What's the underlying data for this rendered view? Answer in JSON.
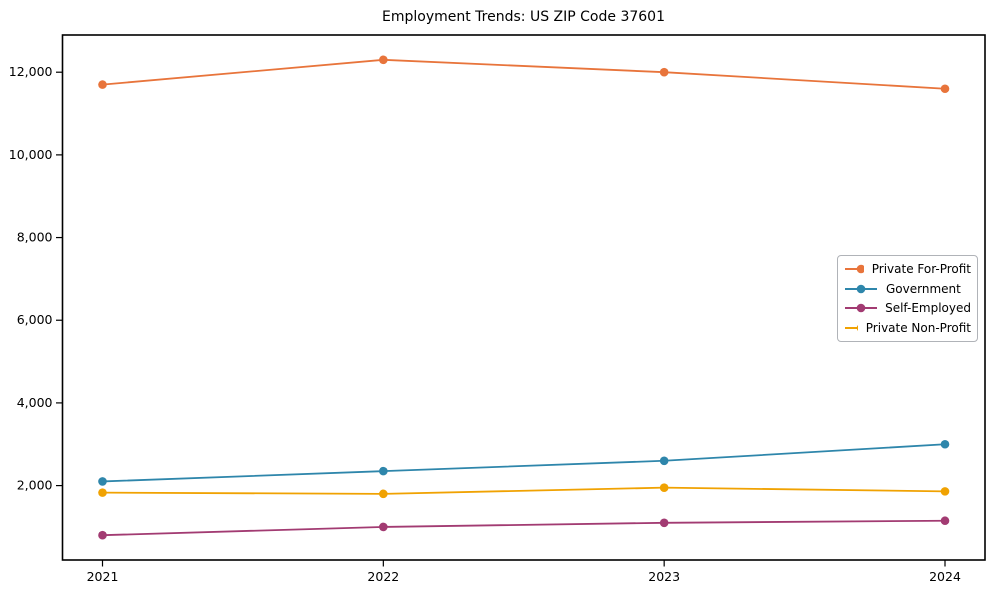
{
  "chart_data": {
    "type": "line",
    "title": "Employment Trends: US ZIP Code 37601",
    "xlabel": "",
    "ylabel": "",
    "x_tick_labels": [
      "2021",
      "2022",
      "2023",
      "2024"
    ],
    "x": [
      2021,
      2022,
      2023,
      2024
    ],
    "series": [
      {
        "name": "Private For-Profit",
        "color": "#e8743b",
        "values": [
          11700,
          12300,
          12000,
          11600
        ]
      },
      {
        "name": "Government",
        "color": "#2e86ab",
        "values": [
          2100,
          2350,
          2600,
          3000
        ]
      },
      {
        "name": "Self-Employed",
        "color": "#a23b72",
        "values": [
          800,
          1000,
          1100,
          1150
        ]
      },
      {
        "name": "Private Non-Profit",
        "color": "#f0a202",
        "values": [
          1830,
          1800,
          1950,
          1860
        ]
      }
    ],
    "y_ticks": [
      2000,
      4000,
      6000,
      8000,
      10000,
      12000
    ],
    "y_tick_labels": [
      "2,000",
      "4,000",
      "6,000",
      "8,000",
      "10,000",
      "12,000"
    ],
    "ylim": [
      200,
      12900
    ],
    "grid": false,
    "marker": "circle",
    "legend_position": "center-right",
    "axis_color": "#000000",
    "text_color": "#000000"
  }
}
